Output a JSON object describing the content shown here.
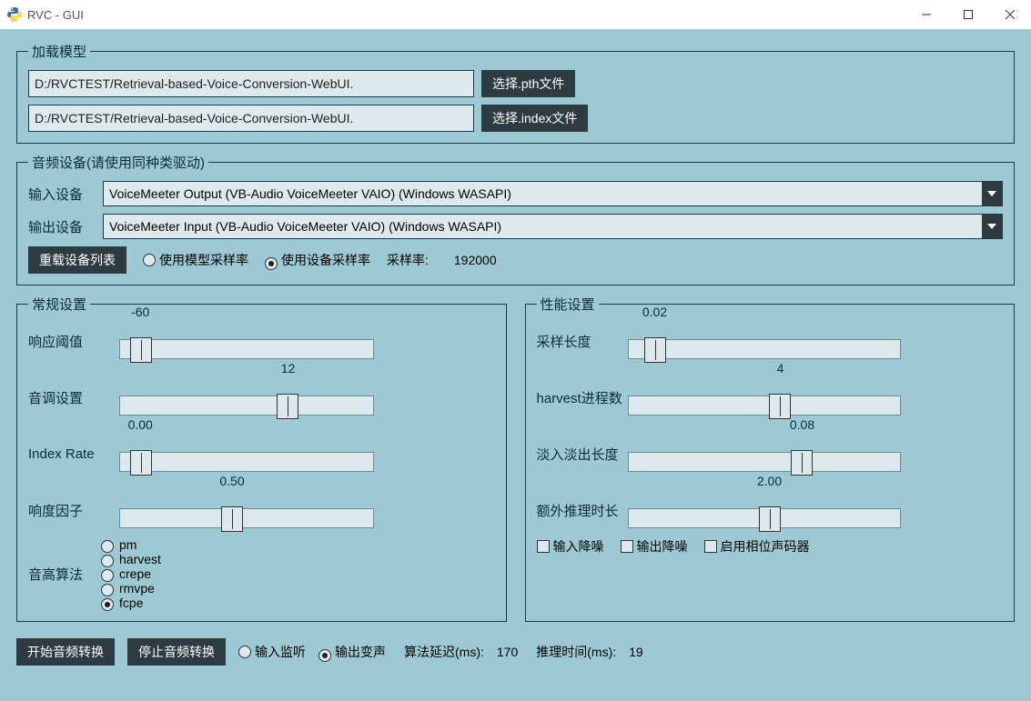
{
  "window": {
    "title": "RVC - GUI"
  },
  "colors": {
    "bg": "#9dc9d4",
    "input_bg": "#dde9ed",
    "border": "#1a3a4a",
    "btn_bg": "#2e3b40",
    "btn_fg": "#ffffff",
    "text": "#0d2b3a"
  },
  "load_model": {
    "legend": "加载模型",
    "pth_path": "D:/RVCTEST/Retrieval-based-Voice-Conversion-WebUI.",
    "pth_btn": "选择.pth文件",
    "index_path": "D:/RVCTEST/Retrieval-based-Voice-Conversion-WebUI.",
    "index_btn": "选择.index文件"
  },
  "audio_devices": {
    "legend": "音频设备(请使用同种类驱动)",
    "input_label": "输入设备",
    "input_value": "VoiceMeeter Output (VB-Audio VoiceMeeter VAIO) (Windows WASAPI)",
    "output_label": "输出设备",
    "output_value": "VoiceMeeter Input (VB-Audio VoiceMeeter VAIO) (Windows WASAPI)",
    "reload_btn": "重载设备列表",
    "sr_model_radio": "使用模型采样率",
    "sr_device_radio": "使用设备采样率",
    "sr_selected": "device",
    "sr_label": "采样率:",
    "sr_value": "192000"
  },
  "general": {
    "legend": "常规设置",
    "sliders": {
      "threshold": {
        "label": "响应阈值",
        "value": "-60",
        "pos_pct": 4
      },
      "pitch": {
        "label": "音调设置",
        "value": "12",
        "pos_pct": 62
      },
      "index_rate": {
        "label": "Index Rate",
        "value": "0.00",
        "pos_pct": 4
      },
      "loudness": {
        "label": "响度因子",
        "value": "0.50",
        "pos_pct": 40
      }
    },
    "algo_label": "音高算法",
    "algos": [
      "pm",
      "harvest",
      "crepe",
      "rmvpe",
      "fcpe"
    ],
    "algo_selected": "fcpe"
  },
  "performance": {
    "legend": "性能设置",
    "sliders": {
      "sample_len": {
        "label": "采样长度",
        "value": "0.02",
        "pos_pct": 6
      },
      "harvest_n": {
        "label": "harvest进程数",
        "value": "4",
        "pos_pct": 52
      },
      "fade_len": {
        "label": "淡入淡出长度",
        "value": "0.08",
        "pos_pct": 60
      },
      "extra_infer": {
        "label": "额外推理时长",
        "value": "2.00",
        "pos_pct": 48
      }
    },
    "checks": {
      "input_denoise": "输入降噪",
      "output_denoise": "输出降噪",
      "phase_vocoder": "启用相位声码器"
    }
  },
  "bottom": {
    "start_btn": "开始音频转换",
    "stop_btn": "停止音频转换",
    "monitor_radio": "输入监听",
    "voice_radio": "输出变声",
    "voice_selected": "voice",
    "algo_delay_label": "算法延迟(ms):",
    "algo_delay": "170",
    "infer_time_label": "推理时间(ms):",
    "infer_time": "19"
  }
}
